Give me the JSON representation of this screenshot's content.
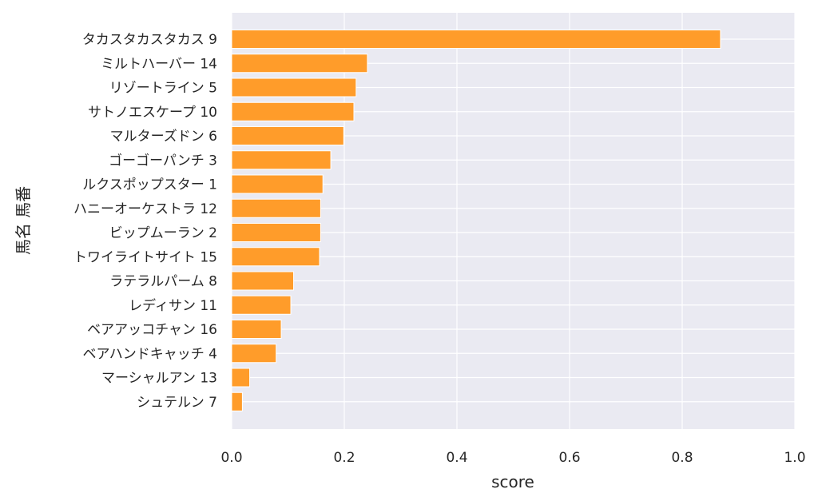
{
  "chart_data": {
    "type": "bar",
    "orientation": "horizontal",
    "categories": [
      "タカスタカスタカス 9",
      "ミルトハーバー 14",
      "リゾートライン 5",
      "サトノエスケープ 10",
      "マルターズドン 6",
      "ゴーゴーパンチ 3",
      "ルクスポップスター 1",
      "ハニーオーケストラ 12",
      "ビップムーラン 2",
      "トワイライトサイト 15",
      "ラテラルパーム 8",
      "レディサン 11",
      "ベアアッコチャン 16",
      "ベアハンドキャッチ 4",
      "マーシャルアン 13",
      "シュテルン 7"
    ],
    "values": [
      0.868,
      0.241,
      0.221,
      0.217,
      0.199,
      0.176,
      0.162,
      0.158,
      0.158,
      0.156,
      0.11,
      0.105,
      0.088,
      0.079,
      0.032,
      0.019
    ],
    "xlabel": "score",
    "ylabel": "馬名 馬番",
    "xlim": [
      0.0,
      1.0
    ],
    "xticks": [
      "0.0",
      "0.2",
      "0.4",
      "0.6",
      "0.8",
      "1.0"
    ],
    "grid": true,
    "bar_color": "#ff9c2a",
    "background_color": "#eaeaf2"
  }
}
